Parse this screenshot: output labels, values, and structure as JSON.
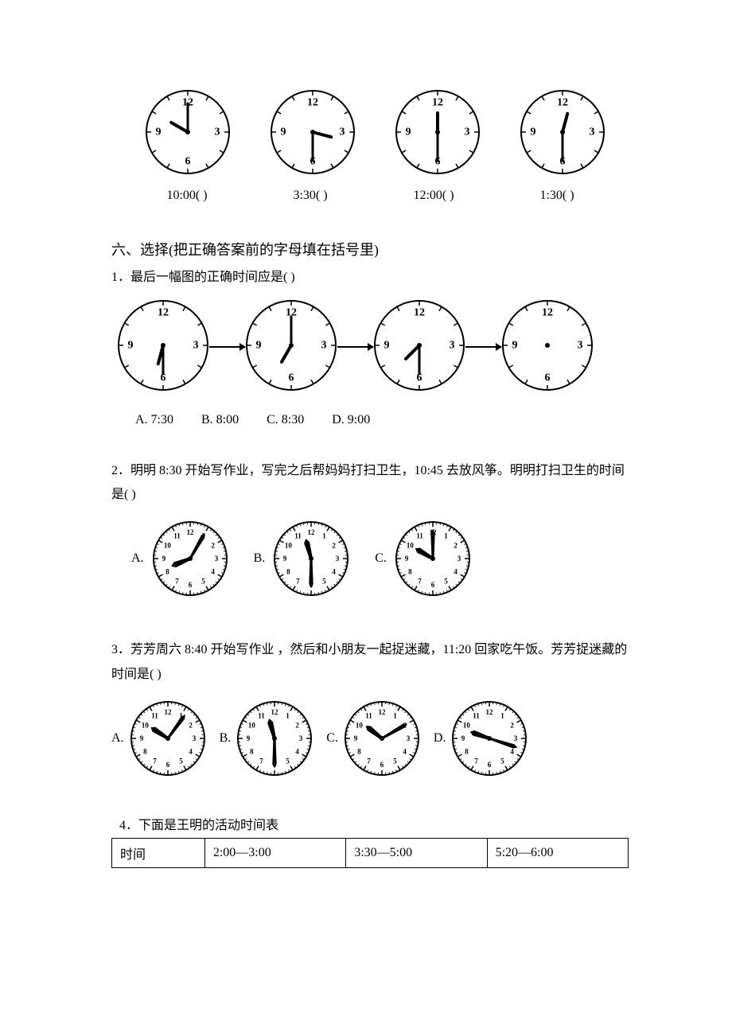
{
  "top_clocks": [
    {
      "hour_angle": 300,
      "minute_angle": 0,
      "label": "10:00(        )"
    },
    {
      "hour_angle": 105,
      "minute_angle": 180,
      "label": "3:30(        )"
    },
    {
      "hour_angle": 0,
      "minute_angle": 180,
      "label": "12:00(        )"
    },
    {
      "hour_angle": 15,
      "minute_angle": 180,
      "label": "1:30(        )"
    }
  ],
  "section6_title": "六、选择(把正确答案前的字母填在括号里)",
  "q1": {
    "text": "1．最后一幅图的正确时间应是(        )",
    "seq": [
      {
        "hour_angle": 195,
        "minute_angle": 180
      },
      {
        "hour_angle": 210,
        "minute_angle": 0
      },
      {
        "hour_angle": 225,
        "minute_angle": 180
      },
      {
        "hour_angle": null,
        "minute_angle": null
      }
    ],
    "options": [
      "A. 7:30",
      "B. 8:00",
      "C. 8:30",
      "D. 9:00"
    ]
  },
  "q2": {
    "text": "2．明明 8:30 开始写作业，写完之后帮妈妈打扫卫生，10:45 去放风筝。明明打扫卫生的时间是(        )",
    "opts": [
      {
        "letter": "A.",
        "hour_angle": 248,
        "minute_angle": 30,
        "style": "detailed"
      },
      {
        "letter": "B.",
        "hour_angle": 345,
        "minute_angle": 180,
        "style": "detailed"
      },
      {
        "letter": "C.",
        "hour_angle": 300,
        "minute_angle": 0,
        "style": "detailed"
      }
    ]
  },
  "q3": {
    "text": "  3．芳芳周六 8:40 开始写作业 ，然后和小朋友一起捉迷藏，11:20 回家吃午饭。芳芳捉迷藏的时间是(        )",
    "opts": [
      {
        "letter": "A.",
        "hour_angle": 303,
        "minute_angle": 36,
        "style": "detailed"
      },
      {
        "letter": "B.",
        "hour_angle": 345,
        "minute_angle": 180,
        "style": "detailed"
      },
      {
        "letter": "C.",
        "hour_angle": 308,
        "minute_angle": 60,
        "style": "detailed"
      },
      {
        "letter": "D.",
        "hour_angle": 289,
        "minute_angle": 108,
        "style": "detailed"
      }
    ]
  },
  "q4": {
    "intro": "4．下面是王明的活动时间表",
    "table": {
      "cols": [
        "时间",
        "2:00—3:00",
        "3:30—5:00",
        "5:20—6:00"
      ]
    }
  },
  "clock_style": {
    "simple": {
      "radius": 52,
      "stroke": "#000",
      "stroke_width": 2,
      "number_font_size": 14,
      "numbers": [
        12,
        3,
        6,
        9
      ],
      "show_minor_ticks": true,
      "tick_count": 12,
      "hour_hand_length": 24,
      "minute_hand_length": 36,
      "hand_width": 4
    },
    "seq": {
      "radius": 56,
      "numbers": [
        12,
        3,
        6,
        9
      ]
    },
    "detailed": {
      "radius": 46,
      "numbers_all": true,
      "tick_count": 60,
      "number_font_size": 9
    }
  }
}
